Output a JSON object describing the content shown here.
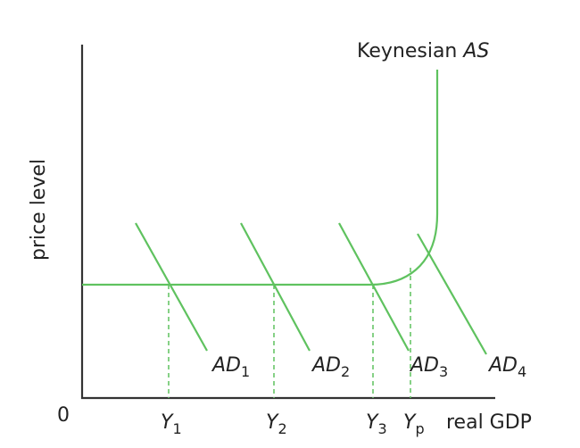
{
  "diagram": {
    "curve_label": {
      "text": "Keynesian",
      "italic": "AS"
    },
    "y_axis_label": "price level",
    "x_axis_label": "real GDP",
    "origin_label": "0",
    "ad_labels": [
      {
        "main": "AD",
        "sub": "1"
      },
      {
        "main": "AD",
        "sub": "2"
      },
      {
        "main": "AD",
        "sub": "3"
      },
      {
        "main": "AD",
        "sub": "4"
      }
    ],
    "y_labels": [
      {
        "main": "Y",
        "sub": "1"
      },
      {
        "main": "Y",
        "sub": "2"
      },
      {
        "main": "Y",
        "sub": "3"
      },
      {
        "main": "Y",
        "sub": "p"
      }
    ]
  }
}
